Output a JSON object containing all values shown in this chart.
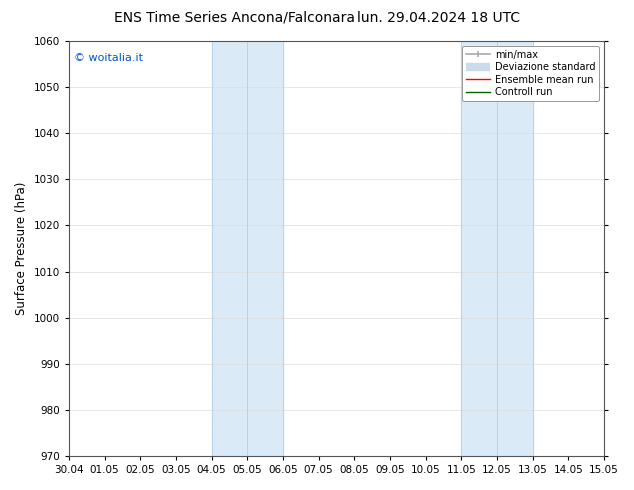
{
  "title_left": "ENS Time Series Ancona/Falconara",
  "title_right": "lun. 29.04.2024 18 UTC",
  "ylabel": "Surface Pressure (hPa)",
  "ylim": [
    970,
    1060
  ],
  "yticks": [
    970,
    980,
    990,
    1000,
    1010,
    1020,
    1030,
    1040,
    1050,
    1060
  ],
  "xtick_labels": [
    "30.04",
    "01.05",
    "02.05",
    "03.05",
    "04.05",
    "05.05",
    "06.05",
    "07.05",
    "08.05",
    "09.05",
    "10.05",
    "11.05",
    "12.05",
    "13.05",
    "14.05",
    "15.05"
  ],
  "shaded_regions": [
    {
      "xstart": 4.0,
      "xend": 5.0,
      "color": "#daeaf6"
    },
    {
      "xstart": 5.0,
      "xend": 6.0,
      "color": "#daeaf6"
    },
    {
      "xstart": 11.0,
      "xend": 12.0,
      "color": "#daeaf6"
    },
    {
      "xstart": 12.0,
      "xend": 13.0,
      "color": "#daeaf6"
    }
  ],
  "shaded_dividers": [
    4.0,
    5.0,
    6.0,
    11.0,
    12.0,
    13.0
  ],
  "watermark": "© woitalia.it",
  "watermark_color": "#0055cc",
  "background_color": "#ffffff",
  "legend_labels": [
    "min/max",
    "Deviazione standard",
    "Ensemble mean run",
    "Controll run"
  ],
  "legend_colors": [
    "#aaaaaa",
    "#c8dced",
    "red",
    "darkgreen"
  ],
  "title_fontsize": 10,
  "tick_label_fontsize": 7.5,
  "ylabel_fontsize": 8.5,
  "watermark_fontsize": 8,
  "legend_fontsize": 7
}
